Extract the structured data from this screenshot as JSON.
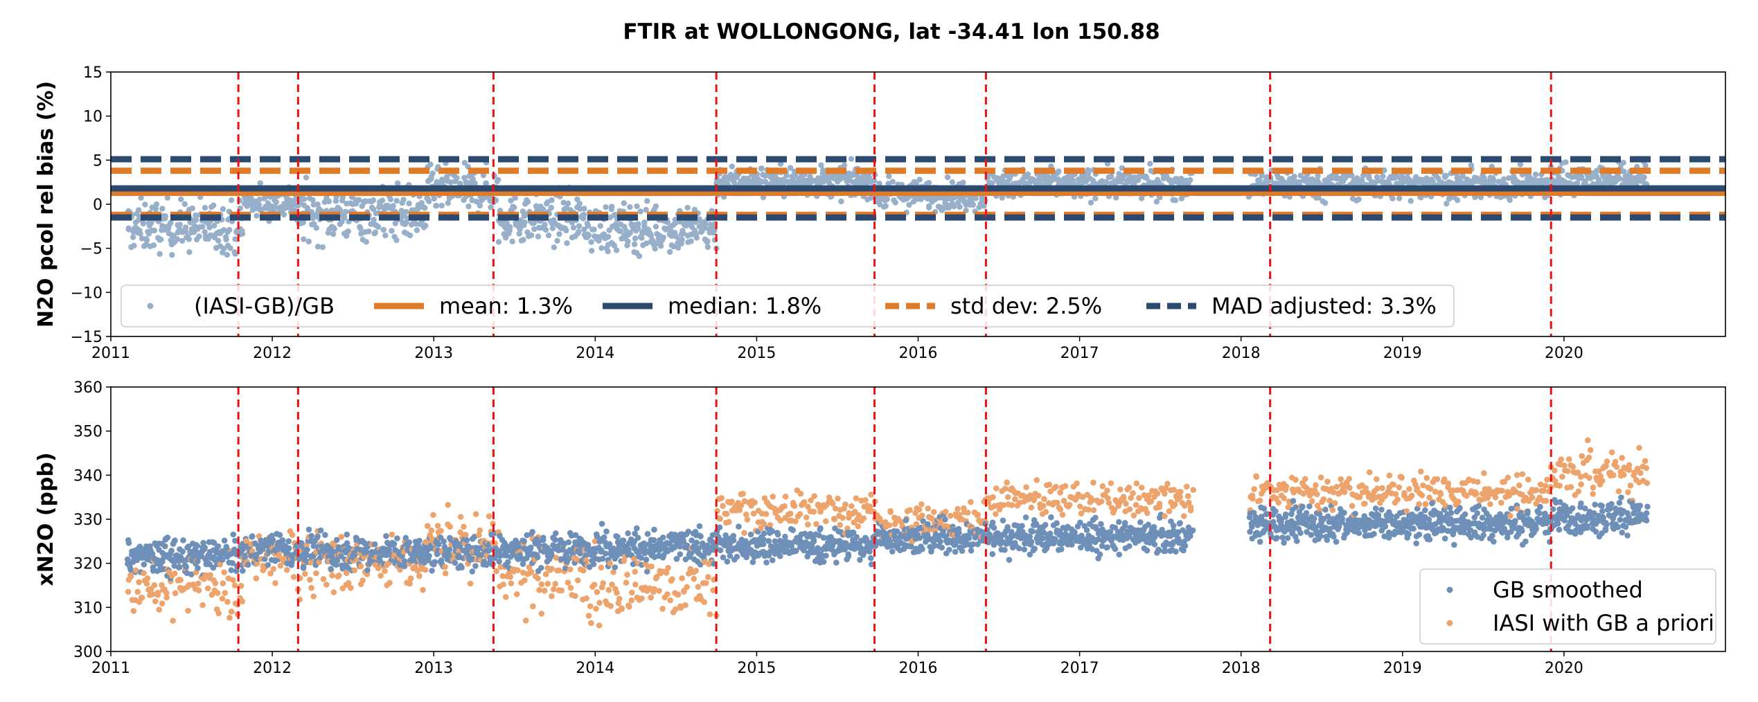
{
  "figure_title": "FTIR at WOLLONGONG, lat -34.41 lon 150.88",
  "colors": {
    "bias_points": "#97afc9",
    "mean": "#e07b2a",
    "median": "#2c4a70",
    "vline": "#ee1111",
    "gb": "#6e90b8",
    "iasi": "#eda46c",
    "frame": "#000000"
  },
  "chart_data": [
    {
      "type": "scatter",
      "name": "relative-bias",
      "title": "",
      "xlabel": "",
      "ylabel": "N2O pcol rel bias (%)",
      "xlim": [
        2011.0,
        2021.0
      ],
      "ylim": [
        -15,
        15
      ],
      "x_ticks": [
        "2011",
        "2012",
        "2013",
        "2014",
        "2015",
        "2016",
        "2017",
        "2018",
        "2019",
        "2020"
      ],
      "y_ticks": [
        "−15",
        "−10",
        "−5",
        "0",
        "5",
        "10",
        "15"
      ],
      "vlines": [
        2011.79,
        2012.16,
        2013.37,
        2014.75,
        2015.73,
        2016.42,
        2018.18,
        2019.92
      ],
      "hlines": [
        {
          "name": "mean",
          "value": 1.3,
          "style": "solid"
        },
        {
          "name": "median",
          "value": 1.8,
          "style": "solid"
        },
        {
          "name": "std-upper",
          "value": 3.8,
          "style": "dashed",
          "color": "mean"
        },
        {
          "name": "std-lower",
          "value": -1.2,
          "style": "dashed",
          "color": "mean"
        },
        {
          "name": "mad-upper",
          "value": 5.1,
          "style": "dashed",
          "color": "median"
        },
        {
          "name": "mad-lower",
          "value": -1.5,
          "style": "dashed",
          "color": "median"
        }
      ],
      "segments": [
        {
          "start": 2011.1,
          "end": 2011.82,
          "mean": -2.5,
          "spread": 2.6
        },
        {
          "start": 2011.82,
          "end": 2012.15,
          "mean": 0.3,
          "spread": 1.8
        },
        {
          "start": 2012.15,
          "end": 2012.95,
          "mean": -1.0,
          "spread": 2.8
        },
        {
          "start": 2012.95,
          "end": 2013.4,
          "mean": 1.6,
          "spread": 2.3
        },
        {
          "start": 2013.4,
          "end": 2013.95,
          "mean": -1.6,
          "spread": 2.6
        },
        {
          "start": 2013.95,
          "end": 2014.75,
          "mean": -2.7,
          "spread": 2.5
        },
        {
          "start": 2014.75,
          "end": 2015.73,
          "mean": 2.6,
          "spread": 1.6
        },
        {
          "start": 2015.73,
          "end": 2016.42,
          "mean": 1.1,
          "spread": 1.5
        },
        {
          "start": 2016.42,
          "end": 2017.7,
          "mean": 2.3,
          "spread": 1.5
        },
        {
          "start": 2018.05,
          "end": 2019.92,
          "mean": 2.2,
          "spread": 1.5
        },
        {
          "start": 2019.92,
          "end": 2020.52,
          "mean": 2.9,
          "spread": 1.6
        }
      ],
      "legend": {
        "placement": "lower-left",
        "entries": [
          {
            "label": "(IASI-GB)/GB",
            "kind": "marker",
            "color": "bias_points"
          },
          {
            "label": "mean: 1.3%",
            "kind": "solid",
            "color": "mean"
          },
          {
            "label": "median: 1.8%",
            "kind": "solid",
            "color": "median"
          },
          {
            "label": "std dev: 2.5%",
            "kind": "dashed",
            "color": "mean"
          },
          {
            "label": "MAD adjusted: 3.3%",
            "kind": "dashed",
            "color": "median"
          }
        ]
      }
    },
    {
      "type": "scatter",
      "name": "xn2o",
      "title": "",
      "xlabel": "",
      "ylabel": "xN2O (ppb)",
      "xlim": [
        2011.0,
        2021.0
      ],
      "ylim": [
        300,
        360
      ],
      "x_ticks": [
        "2011",
        "2012",
        "2013",
        "2014",
        "2015",
        "2016",
        "2017",
        "2018",
        "2019",
        "2020"
      ],
      "y_ticks": [
        "300",
        "310",
        "320",
        "330",
        "340",
        "350",
        "360"
      ],
      "vlines": [
        2011.79,
        2012.16,
        2013.37,
        2014.75,
        2015.73,
        2016.42,
        2018.18,
        2019.92
      ],
      "segments": [
        {
          "start": 2011.1,
          "end": 2011.82,
          "gb": 321.5,
          "iasi": 314.5,
          "spread": 6.0
        },
        {
          "start": 2011.82,
          "end": 2012.15,
          "gb": 323.0,
          "iasi": 322.0,
          "spread": 5.0
        },
        {
          "start": 2012.15,
          "end": 2012.95,
          "gb": 322.5,
          "iasi": 320.0,
          "spread": 6.0
        },
        {
          "start": 2012.95,
          "end": 2013.4,
          "gb": 322.8,
          "iasi": 324.5,
          "spread": 6.0
        },
        {
          "start": 2013.4,
          "end": 2013.95,
          "gb": 323.0,
          "iasi": 318.5,
          "spread": 7.0
        },
        {
          "start": 2013.95,
          "end": 2014.75,
          "gb": 323.5,
          "iasi": 315.0,
          "spread": 7.0
        },
        {
          "start": 2014.75,
          "end": 2015.73,
          "gb": 324.0,
          "iasi": 332.0,
          "spread": 3.5
        },
        {
          "start": 2015.73,
          "end": 2016.42,
          "gb": 326.0,
          "iasi": 329.5,
          "spread": 3.0
        },
        {
          "start": 2016.42,
          "end": 2017.7,
          "gb": 326.0,
          "iasi": 334.5,
          "spread": 3.5
        },
        {
          "start": 2018.05,
          "end": 2019.92,
          "gb": 329.0,
          "iasi": 336.5,
          "spread": 3.5
        },
        {
          "start": 2019.92,
          "end": 2020.52,
          "gb": 330.5,
          "iasi": 341.0,
          "spread": 4.0
        }
      ],
      "legend": {
        "placement": "lower-right",
        "entries": [
          {
            "label": "GB smoothed",
            "kind": "marker",
            "color": "gb"
          },
          {
            "label": "IASI with GB a priori",
            "kind": "marker",
            "color": "iasi"
          }
        ]
      }
    }
  ]
}
